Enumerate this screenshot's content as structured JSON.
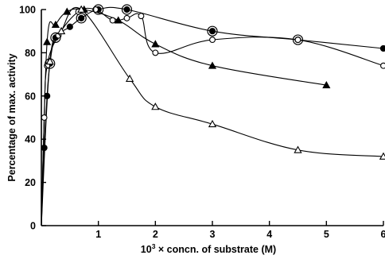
{
  "chart_data": {
    "type": "line",
    "title": "",
    "xlabel": "10³ × concn. of substrate (M)",
    "xlabel_parts": {
      "prefix": "10",
      "sup": "3",
      "suffix": " × concn. of substrate (M)"
    },
    "ylabel": "Percentage of max. activity",
    "xlim": [
      0,
      6
    ],
    "ylim": [
      0,
      100
    ],
    "xticks": [
      "1",
      "2",
      "3",
      "4",
      "5",
      "6"
    ],
    "yticks": [
      "0",
      "20",
      "40",
      "60",
      "80",
      "100"
    ],
    "grid": false,
    "series": [
      {
        "marker": "filled-circle",
        "x": [
          0.0,
          0.05,
          0.1,
          0.15,
          0.25,
          0.5,
          0.7,
          1.0,
          1.5,
          3.0,
          4.5,
          6.0
        ],
        "y": [
          0,
          36,
          60,
          75,
          87,
          92,
          96,
          100,
          100,
          90,
          86,
          82
        ]
      },
      {
        "marker": "open-circle",
        "x": [
          0.0,
          0.05,
          0.1,
          0.3,
          0.65,
          0.95,
          1.25,
          1.5,
          1.75,
          2.0,
          3.0,
          4.5,
          6.0
        ],
        "y": [
          0,
          50,
          74,
          88,
          99,
          100,
          95,
          96,
          97,
          80,
          86,
          86,
          74
        ]
      },
      {
        "marker": "filled-triangle",
        "x": [
          0.0,
          0.1,
          0.25,
          0.45,
          0.75,
          1.35,
          2.0,
          3.0,
          5.0
        ],
        "y": [
          0,
          85,
          93,
          99,
          100,
          95,
          84,
          74,
          65
        ]
      },
      {
        "marker": "open-triangle",
        "x": [
          0.0,
          0.15,
          0.35,
          0.7,
          1.55,
          2.0,
          3.0,
          4.5,
          6.0
        ],
        "y": [
          0,
          76,
          90,
          100,
          68,
          55,
          47,
          35,
          32
        ]
      }
    ]
  }
}
